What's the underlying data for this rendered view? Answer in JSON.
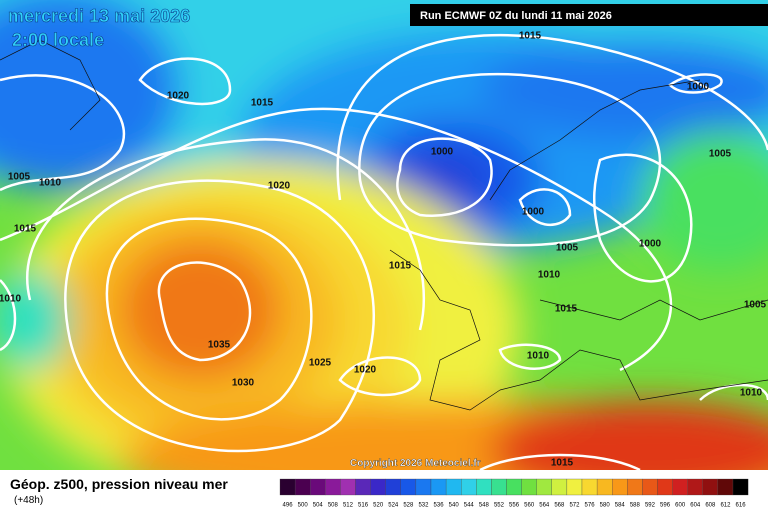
{
  "header": {
    "date": "mercredi 13 mai 2026",
    "time": "2:00 locale",
    "run": "Run ECMWF 0Z du lundi 11 mai 2026"
  },
  "isobar_labels": [
    "1015",
    "1020",
    "1015",
    "1000",
    "1000",
    "1005",
    "1005",
    "1010",
    "1020",
    "1000",
    "1005",
    "1000",
    "1015",
    "1015",
    "1010",
    "1010",
    "1015",
    "1005",
    "1035",
    "1010",
    "1025",
    "1020",
    "1030",
    "1010",
    "1015"
  ],
  "copyright": "Copyright 2026 Meteociel.fr",
  "legend": {
    "title": "Géop. z500, pression niveau mer",
    "subtitle": "(+48h)",
    "labels": [
      "496",
      "500",
      "504",
      "508",
      "512",
      "516",
      "520",
      "524",
      "528",
      "532",
      "536",
      "540",
      "544",
      "548",
      "552",
      "556",
      "560",
      "564",
      "568",
      "572",
      "576",
      "580",
      "584",
      "588",
      "592",
      "596",
      "600",
      "604",
      "608",
      "612",
      "616"
    ],
    "colors": [
      "#2a0030",
      "#4b0050",
      "#6a0a7a",
      "#8a1a9a",
      "#a030b0",
      "#5a28b8",
      "#3a28c8",
      "#2040d8",
      "#1858e8",
      "#1a78f0",
      "#1a98f4",
      "#20b8f0",
      "#30d0e8",
      "#30e0c0",
      "#38e090",
      "#48e060",
      "#70e040",
      "#a0e840",
      "#d0f040",
      "#f0f040",
      "#f8d830",
      "#f8b820",
      "#f89818",
      "#f07818",
      "#e85818",
      "#e03818",
      "#d02020",
      "#b01818",
      "#901010",
      "#600808",
      "#000000"
    ]
  }
}
